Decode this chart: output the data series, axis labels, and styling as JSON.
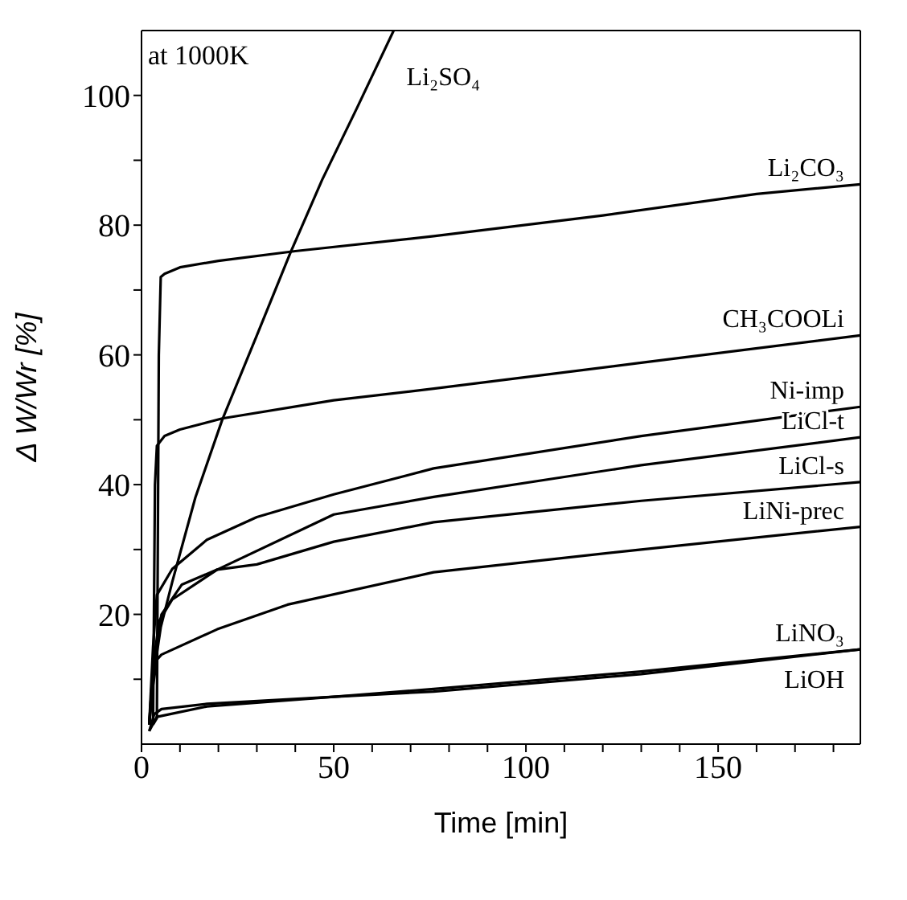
{
  "chart_data": {
    "type": "line",
    "xlabel": "Time [min]",
    "ylabel": "Δ W/Wr [%]",
    "annotations": [
      "at 1000K"
    ],
    "xlim": [
      0,
      187
    ],
    "ylim": [
      0,
      110
    ],
    "xticks": [
      0,
      {
        "value": 10,
        "label": null
      },
      {
        "value": 20,
        "label": null
      },
      {
        "value": 30,
        "label": null
      },
      {
        "value": 40,
        "label": null
      },
      50,
      {
        "value": 60,
        "label": null
      },
      {
        "value": 70,
        "label": null
      },
      {
        "value": 80,
        "label": null
      },
      {
        "value": 90,
        "label": null
      },
      100,
      {
        "value": 110,
        "label": null
      },
      {
        "value": 120,
        "label": null
      },
      {
        "value": 130,
        "label": null
      },
      {
        "value": 140,
        "label": null
      },
      150,
      {
        "value": 160,
        "label": null
      },
      {
        "value": 170,
        "label": null
      },
      {
        "value": 180,
        "label": null
      }
    ],
    "yticks": [
      {
        "value": 10,
        "label": null
      },
      20,
      {
        "value": 30,
        "label": null
      },
      40,
      {
        "value": 50,
        "label": null
      },
      60,
      {
        "value": 70,
        "label": null
      },
      80,
      {
        "value": 90,
        "label": null
      },
      100
    ],
    "grid": false,
    "legend": false,
    "marker": "none",
    "line_style": "solid",
    "series": [
      {
        "name": "Li₂SO₄",
        "color": "#000000",
        "x": [
          2,
          3,
          5,
          8,
          14,
          21,
          30,
          38.7,
          47,
          56,
          65.6
        ],
        "values": [
          3,
          10,
          18,
          25,
          38,
          50,
          63,
          75.7,
          87,
          98,
          110
        ]
      },
      {
        "name": "Li₂CO₃",
        "color": "#000000",
        "x": [
          3,
          4,
          4.5,
          5,
          6,
          10,
          20,
          40,
          76,
          120,
          160,
          187
        ],
        "values": [
          3,
          4,
          60,
          72,
          72.5,
          73.5,
          74.5,
          76,
          78.3,
          81.5,
          84.8,
          86.3
        ]
      },
      {
        "name": "CH₃COOLi",
        "color": "#000000",
        "x": [
          3,
          3.5,
          4,
          6,
          10,
          21,
          50,
          76,
          130,
          187
        ],
        "values": [
          3,
          40,
          46,
          47.5,
          48.5,
          50.2,
          53,
          54.8,
          58.8,
          63
        ]
      },
      {
        "name": "Ni-imp",
        "color": "#000000",
        "x": [
          2,
          3,
          4,
          8,
          17,
          30,
          50,
          76,
          130,
          187
        ],
        "values": [
          3,
          15,
          23,
          27,
          31.5,
          35,
          38.5,
          42.5,
          47.5,
          52
        ]
      },
      {
        "name": "LiCl-t",
        "color": "#000000",
        "x": [
          2,
          3,
          4.6,
          8,
          19.7,
          50,
          76,
          130,
          187
        ],
        "values": [
          3,
          12,
          19,
          22.3,
          26.9,
          35.4,
          38.1,
          43,
          47.3
        ]
      },
      {
        "name": "LiCl-s",
        "color": "#000000",
        "x": [
          2,
          3,
          5.2,
          10.5,
          19.7,
          30,
          50,
          76,
          130,
          187
        ],
        "values": [
          3,
          12,
          20,
          24.6,
          26.9,
          27.7,
          31.2,
          34.2,
          37.5,
          40.4
        ]
      },
      {
        "name": "LiNi-prec",
        "color": "#000000",
        "x": [
          2,
          3,
          4,
          5.2,
          19.7,
          38,
          76,
          130,
          187
        ],
        "values": [
          3,
          9,
          13,
          13.8,
          17.7,
          21.5,
          26.5,
          30,
          33.5
        ]
      },
      {
        "name": "LiNO₃",
        "color": "#000000",
        "x": [
          2,
          3.3,
          5.2,
          17,
          50,
          76,
          130,
          187
        ],
        "values": [
          2,
          4.6,
          5.4,
          6.2,
          7.3,
          8.5,
          11.2,
          14.6
        ]
      },
      {
        "name": "LiOH",
        "color": "#000000",
        "x": [
          2,
          4,
          17,
          50,
          76,
          130,
          187
        ],
        "values": [
          2,
          4.2,
          5.8,
          7.3,
          8.1,
          10.8,
          14.6
        ]
      }
    ]
  }
}
